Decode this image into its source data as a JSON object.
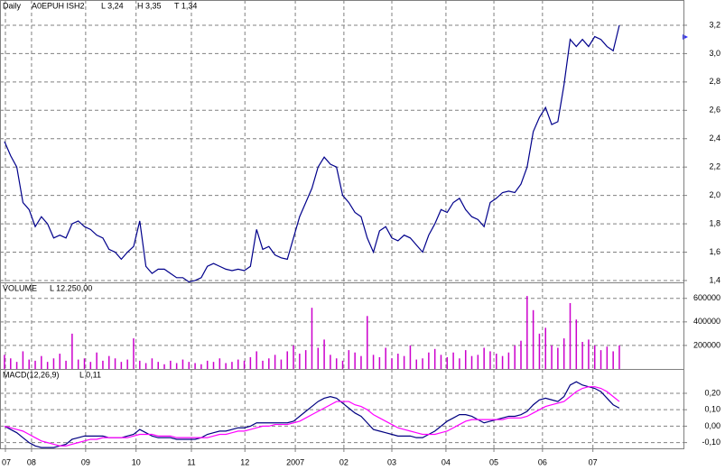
{
  "chart_data": [
    {
      "type": "line",
      "annotations": [
        "Daily",
        "A0EPUH ISH2",
        "L 3,24",
        "H 3,35",
        "T 1,34"
      ],
      "color": "#00008b",
      "x": [
        0,
        1,
        2,
        3,
        4,
        5,
        6,
        7,
        8,
        9,
        10,
        11,
        12,
        13,
        14,
        15,
        16,
        17,
        18,
        19,
        20,
        21,
        22,
        23,
        24,
        25,
        26,
        27,
        28,
        29,
        30,
        31,
        32,
        33,
        34,
        35,
        36,
        37,
        38,
        39,
        40,
        41,
        42,
        43,
        44,
        45,
        46,
        47,
        48,
        49,
        50,
        51,
        52,
        53,
        54,
        55,
        56,
        57,
        58,
        59,
        60,
        61,
        62,
        63,
        64,
        65,
        66,
        67,
        68,
        69,
        70,
        71,
        72,
        73,
        74,
        75,
        76,
        77,
        78,
        79,
        80,
        81,
        82,
        83,
        84,
        85,
        86,
        87,
        88,
        89,
        90,
        91,
        92,
        93,
        94,
        95,
        96,
        97,
        98,
        99,
        100
      ],
      "values": [
        2.38,
        2.28,
        2.2,
        1.95,
        1.9,
        1.78,
        1.85,
        1.8,
        1.7,
        1.72,
        1.7,
        1.8,
        1.82,
        1.78,
        1.76,
        1.72,
        1.7,
        1.62,
        1.6,
        1.55,
        1.6,
        1.64,
        1.82,
        1.5,
        1.45,
        1.48,
        1.48,
        1.45,
        1.42,
        1.42,
        1.39,
        1.4,
        1.42,
        1.5,
        1.52,
        1.5,
        1.48,
        1.47,
        1.48,
        1.47,
        1.5,
        1.76,
        1.62,
        1.64,
        1.58,
        1.56,
        1.55,
        1.7,
        1.85,
        1.95,
        2.05,
        2.2,
        2.27,
        2.22,
        2.2,
        2.0,
        1.95,
        1.88,
        1.85,
        1.7,
        1.6,
        1.75,
        1.78,
        1.7,
        1.68,
        1.72,
        1.7,
        1.65,
        1.6,
        1.72,
        1.8,
        1.9,
        1.88,
        1.95,
        1.98,
        1.9,
        1.85,
        1.83,
        1.78,
        1.95,
        1.98,
        2.02,
        2.03,
        2.02,
        2.08,
        2.2,
        2.45,
        2.55,
        2.62,
        2.5,
        2.52,
        2.78,
        3.1,
        3.05,
        3.1,
        3.05,
        3.12,
        3.1,
        3.05,
        3.02,
        3.2
      ],
      "xlim": [
        -0.73,
        110.43
      ],
      "ylim": [
        1.387,
        3.378
      ],
      "yticks": [
        {
          "value": 1.4,
          "label": "1,4"
        },
        {
          "value": 1.6,
          "label": "1,6"
        },
        {
          "value": 1.8,
          "label": "1,8"
        },
        {
          "value": 2.0,
          "label": "2,0"
        },
        {
          "value": 2.2,
          "label": "2,2"
        },
        {
          "value": 2.4,
          "label": "2,4"
        },
        {
          "value": 2.6,
          "label": "2,6"
        },
        {
          "value": 2.8,
          "label": "2,8"
        },
        {
          "value": 3.0,
          "label": "3,0"
        },
        {
          "value": 3.2,
          "label": "3,2"
        }
      ],
      "grid": true
    },
    {
      "type": "bar",
      "annotations": [
        "VOLUME",
        "L 12.250,00"
      ],
      "color": "#cc00cc",
      "x": [
        0,
        1,
        2,
        3,
        4,
        5,
        6,
        7,
        8,
        9,
        10,
        11,
        12,
        13,
        14,
        15,
        16,
        17,
        18,
        19,
        20,
        21,
        22,
        23,
        24,
        25,
        26,
        27,
        28,
        29,
        30,
        31,
        32,
        33,
        34,
        35,
        36,
        37,
        38,
        39,
        40,
        41,
        42,
        43,
        44,
        45,
        46,
        47,
        48,
        49,
        50,
        51,
        52,
        53,
        54,
        55,
        56,
        57,
        58,
        59,
        60,
        61,
        62,
        63,
        64,
        65,
        66,
        67,
        68,
        69,
        70,
        71,
        72,
        73,
        74,
        75,
        76,
        77,
        78,
        79,
        80,
        81,
        82,
        83,
        84,
        85,
        86,
        87,
        88,
        89,
        90,
        91,
        92,
        93,
        94,
        95,
        96,
        97,
        98,
        99,
        100
      ],
      "values": [
        120000,
        90000,
        60000,
        150000,
        80000,
        70000,
        110000,
        60000,
        90000,
        130000,
        70000,
        300000,
        80000,
        90000,
        60000,
        140000,
        70000,
        110000,
        90000,
        60000,
        80000,
        260000,
        70000,
        50000,
        90000,
        60000,
        40000,
        70000,
        50000,
        80000,
        60000,
        50000,
        40000,
        70000,
        60000,
        90000,
        50000,
        60000,
        80000,
        70000,
        100000,
        150000,
        70000,
        90000,
        120000,
        80000,
        150000,
        200000,
        130000,
        160000,
        520000,
        180000,
        250000,
        120000,
        90000,
        70000,
        160000,
        140000,
        110000,
        450000,
        120000,
        100000,
        180000,
        90000,
        130000,
        110000,
        200000,
        80000,
        90000,
        140000,
        170000,
        120000,
        100000,
        140000,
        90000,
        160000,
        110000,
        120000,
        180000,
        150000,
        130000,
        110000,
        140000,
        200000,
        240000,
        620000,
        500000,
        300000,
        350000,
        200000,
        180000,
        260000,
        560000,
        420000,
        230000,
        250000,
        200000,
        160000,
        190000,
        150000,
        200000
      ],
      "xlim": [
        -0.73,
        110.43
      ],
      "ylim": [
        0,
        736000
      ],
      "yticks": [
        200000,
        400000,
        600000
      ],
      "grid": true
    },
    {
      "type": "line",
      "annotations": [
        "MACD(12,26,9)",
        "L 0,11"
      ],
      "x": [
        0,
        1,
        2,
        3,
        4,
        5,
        6,
        7,
        8,
        9,
        10,
        11,
        12,
        13,
        14,
        15,
        16,
        17,
        18,
        19,
        20,
        21,
        22,
        23,
        24,
        25,
        26,
        27,
        28,
        29,
        30,
        31,
        32,
        33,
        34,
        35,
        36,
        37,
        38,
        39,
        40,
        41,
        42,
        43,
        44,
        45,
        46,
        47,
        48,
        49,
        50,
        51,
        52,
        53,
        54,
        55,
        56,
        57,
        58,
        59,
        60,
        61,
        62,
        63,
        64,
        65,
        66,
        67,
        68,
        69,
        70,
        71,
        72,
        73,
        74,
        75,
        76,
        77,
        78,
        79,
        80,
        81,
        82,
        83,
        84,
        85,
        86,
        87,
        88,
        89,
        90,
        91,
        92,
        93,
        94,
        95,
        96,
        97,
        98,
        99,
        100
      ],
      "series": [
        {
          "color": "#000080",
          "values": [
            0.0,
            -0.02,
            -0.04,
            -0.07,
            -0.1,
            -0.12,
            -0.13,
            -0.13,
            -0.13,
            -0.12,
            -0.11,
            -0.08,
            -0.07,
            -0.06,
            -0.06,
            -0.06,
            -0.06,
            -0.07,
            -0.07,
            -0.07,
            -0.06,
            -0.05,
            -0.02,
            -0.04,
            -0.06,
            -0.07,
            -0.07,
            -0.07,
            -0.08,
            -0.08,
            -0.08,
            -0.08,
            -0.07,
            -0.05,
            -0.04,
            -0.03,
            -0.03,
            -0.02,
            -0.01,
            -0.01,
            0.0,
            0.02,
            0.02,
            0.02,
            0.02,
            0.02,
            0.02,
            0.03,
            0.06,
            0.09,
            0.12,
            0.15,
            0.17,
            0.18,
            0.17,
            0.14,
            0.11,
            0.08,
            0.06,
            0.02,
            -0.02,
            -0.03,
            -0.04,
            -0.05,
            -0.06,
            -0.06,
            -0.06,
            -0.07,
            -0.07,
            -0.05,
            -0.03,
            0.0,
            0.03,
            0.05,
            0.07,
            0.07,
            0.06,
            0.04,
            0.02,
            0.03,
            0.04,
            0.05,
            0.06,
            0.06,
            0.07,
            0.09,
            0.13,
            0.16,
            0.17,
            0.16,
            0.15,
            0.18,
            0.25,
            0.27,
            0.25,
            0.24,
            0.23,
            0.21,
            0.17,
            0.13,
            0.11
          ]
        },
        {
          "color": "#ff00ff",
          "values": [
            0.0,
            -0.01,
            -0.02,
            -0.03,
            -0.05,
            -0.07,
            -0.09,
            -0.1,
            -0.11,
            -0.12,
            -0.12,
            -0.11,
            -0.1,
            -0.09,
            -0.08,
            -0.08,
            -0.07,
            -0.07,
            -0.07,
            -0.07,
            -0.07,
            -0.06,
            -0.05,
            -0.05,
            -0.05,
            -0.06,
            -0.06,
            -0.06,
            -0.07,
            -0.07,
            -0.07,
            -0.07,
            -0.07,
            -0.07,
            -0.06,
            -0.05,
            -0.05,
            -0.04,
            -0.03,
            -0.03,
            -0.02,
            -0.01,
            0.0,
            0.0,
            0.01,
            0.01,
            0.01,
            0.02,
            0.03,
            0.05,
            0.07,
            0.09,
            0.11,
            0.13,
            0.15,
            0.15,
            0.15,
            0.13,
            0.12,
            0.1,
            0.07,
            0.05,
            0.03,
            0.01,
            -0.01,
            -0.02,
            -0.03,
            -0.04,
            -0.05,
            -0.05,
            -0.05,
            -0.04,
            -0.03,
            -0.01,
            0.01,
            0.03,
            0.04,
            0.04,
            0.04,
            0.04,
            0.04,
            0.04,
            0.05,
            0.05,
            0.05,
            0.06,
            0.08,
            0.1,
            0.12,
            0.13,
            0.14,
            0.15,
            0.18,
            0.21,
            0.23,
            0.24,
            0.24,
            0.23,
            0.21,
            0.18,
            0.15
          ]
        }
      ],
      "xlim": [
        -0.73,
        110.43
      ],
      "ylim": [
        -0.135,
        0.348
      ],
      "xticks": [
        {
          "value": 0.15,
          "label": "07"
        },
        {
          "value": 4.4,
          "label": "08"
        },
        {
          "value": 13.2,
          "label": "09"
        },
        {
          "value": 21.4,
          "label": "10"
        },
        {
          "value": 30.4,
          "label": "11"
        },
        {
          "value": 39.1,
          "label": "12"
        },
        {
          "value": 47.3,
          "label": "2007"
        },
        {
          "value": 55.2,
          "label": "02"
        },
        {
          "value": 63.0,
          "label": "03"
        },
        {
          "value": 71.8,
          "label": "04"
        },
        {
          "value": 79.6,
          "label": "05"
        },
        {
          "value": 87.5,
          "label": "06"
        },
        {
          "value": 95.7,
          "label": "07"
        }
      ],
      "yticks": [
        {
          "value": -0.1,
          "label": "-0,10"
        },
        {
          "value": 0.0,
          "label": "0,00"
        },
        {
          "value": 0.1,
          "label": "0,10"
        },
        {
          "value": 0.2,
          "label": "0,20"
        }
      ],
      "grid": true
    }
  ]
}
